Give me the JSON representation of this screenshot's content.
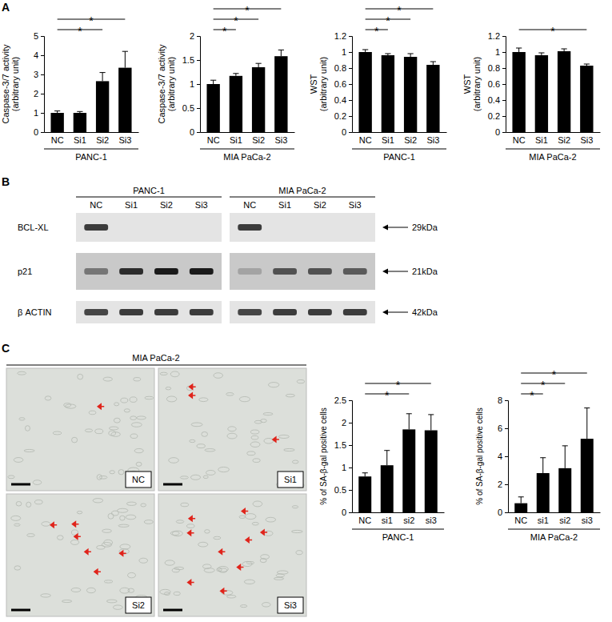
{
  "panel_labels": [
    "A",
    "B",
    "C"
  ],
  "chart_data": [
    {
      "type": "bar",
      "categories": [
        "NC",
        "Si1",
        "Si2",
        "Si3"
      ],
      "values": [
        1.0,
        1.0,
        2.65,
        3.35
      ],
      "errors": [
        0.1,
        0.07,
        0.45,
        0.85
      ],
      "color": "#000000",
      "ylim": [
        0,
        5
      ],
      "yticks": [
        0,
        1,
        2,
        3,
        4,
        5
      ],
      "ylabel": [
        "Caspase-3/7 activity",
        "(arbitrary unit)"
      ],
      "xlabel": "PANC-1",
      "grid": false,
      "annotations": [
        {
          "from": "NC",
          "to": "Si2",
          "text": "*"
        },
        {
          "from": "NC",
          "to": "Si3",
          "text": "*"
        }
      ]
    },
    {
      "type": "bar",
      "categories": [
        "NC",
        "Si1",
        "Si2",
        "Si3"
      ],
      "values": [
        1.0,
        1.17,
        1.35,
        1.58
      ],
      "errors": [
        0.08,
        0.05,
        0.08,
        0.13
      ],
      "color": "#000000",
      "ylim": [
        0,
        2
      ],
      "yticks": [
        0,
        0.5,
        1,
        1.5,
        2
      ],
      "ylabel": [
        "Caspase-3/7 activity",
        "(arbitrary unit)"
      ],
      "xlabel": "MIA PaCa-2",
      "grid": false,
      "annotations": [
        {
          "from": "NC",
          "to": "Si1",
          "text": "*"
        },
        {
          "from": "NC",
          "to": "Si2",
          "text": "*"
        },
        {
          "from": "NC",
          "to": "Si3",
          "text": "*"
        }
      ]
    },
    {
      "type": "bar",
      "categories": [
        "NC",
        "Si1",
        "Si2",
        "Si3"
      ],
      "values": [
        1.0,
        0.96,
        0.94,
        0.84
      ],
      "errors": [
        0.03,
        0.02,
        0.04,
        0.04
      ],
      "color": "#000000",
      "ylim": [
        0,
        1.2
      ],
      "yticks": [
        0,
        0.2,
        0.4,
        0.6,
        0.8,
        1,
        1.2
      ],
      "ylabel": [
        "WST",
        "(arbitrary unit)"
      ],
      "xlabel": "PANC-1",
      "grid": false,
      "annotations": [
        {
          "from": "NC",
          "to": "Si1",
          "text": "*"
        },
        {
          "from": "NC",
          "to": "Si2",
          "text": "*"
        },
        {
          "from": "NC",
          "to": "Si3",
          "text": "*"
        }
      ]
    },
    {
      "type": "bar",
      "categories": [
        "NC",
        "Si1",
        "Si2",
        "Si3"
      ],
      "values": [
        1.0,
        0.96,
        1.01,
        0.83
      ],
      "errors": [
        0.05,
        0.03,
        0.03,
        0.02
      ],
      "color": "#000000",
      "ylim": [
        0,
        1.2
      ],
      "yticks": [
        0,
        0.2,
        0.4,
        0.6,
        0.8,
        1,
        1.2
      ],
      "ylabel": [
        "WST",
        "(arbitrary unit)"
      ],
      "xlabel": "MIA PaCa-2",
      "grid": false,
      "annotations": [
        {
          "from": "NC",
          "to": "Si3",
          "text": "*"
        }
      ]
    },
    {
      "type": "bar",
      "categories": [
        "NC",
        "si1",
        "si2",
        "si3"
      ],
      "values": [
        0.8,
        1.05,
        1.85,
        1.83
      ],
      "errors": [
        0.08,
        0.33,
        0.35,
        0.35
      ],
      "color": "#000000",
      "ylim": [
        0,
        2.5
      ],
      "yticks": [
        0,
        0.5,
        1,
        1.5,
        2,
        2.5
      ],
      "ylabel": [
        "% of SA-β-gal positive cells"
      ],
      "xlabel": "PANC-1",
      "grid": false,
      "annotations": [
        {
          "from": "NC",
          "to": "si2",
          "text": "*"
        },
        {
          "from": "NC",
          "to": "si3",
          "text": "*"
        }
      ]
    },
    {
      "type": "bar",
      "categories": [
        "NC",
        "si1",
        "si2",
        "si3"
      ],
      "values": [
        0.65,
        2.8,
        3.15,
        5.25
      ],
      "errors": [
        0.45,
        1.1,
        1.6,
        2.2
      ],
      "color": "#000000",
      "ylim": [
        0,
        8
      ],
      "yticks": [
        0,
        2,
        4,
        6,
        8
      ],
      "ylabel": [
        "% of SA-β-gal positive cells"
      ],
      "xlabel": "MIA PaCa-2",
      "grid": false,
      "annotations": [
        {
          "from": "NC",
          "to": "si1",
          "text": "*"
        },
        {
          "from": "NC",
          "to": "si2",
          "text": "*"
        },
        {
          "from": "NC",
          "to": "si3",
          "text": "*"
        }
      ]
    }
  ],
  "blot": {
    "cell_lines": [
      "PANC-1",
      "MIA PaCa-2"
    ],
    "lanes": [
      "NC",
      "Si1",
      "Si2",
      "Si3"
    ],
    "proteins": [
      "BCL-XL",
      "p21",
      "β ACTIN"
    ],
    "sizes": [
      "29kDa",
      "21kDa",
      "42kDa"
    ],
    "intensity": [
      [
        0.8,
        0,
        0,
        0,
        0.8,
        0,
        0,
        0
      ],
      [
        0.45,
        0.85,
        0.95,
        0.95,
        0.2,
        0.65,
        0.65,
        0.6
      ],
      [
        0.75,
        0.8,
        0.8,
        0.8,
        0.75,
        0.8,
        0.8,
        0.8
      ]
    ]
  },
  "micrograph": {
    "title": "MIA PaCa-2",
    "panels": [
      "NC",
      "Si1",
      "Si2",
      "Si3"
    ],
    "arrows": [
      1,
      3,
      6,
      9
    ]
  }
}
